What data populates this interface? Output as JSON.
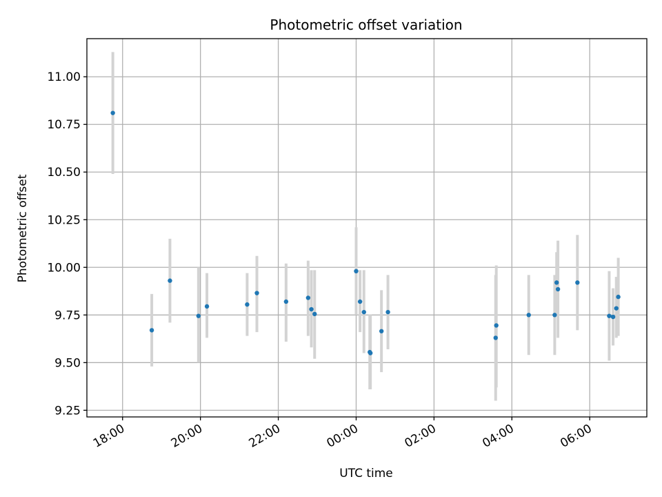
{
  "chart_data": {
    "type": "scatter",
    "title": "Photometric offset variation",
    "xlabel": "UTC time",
    "ylabel": "Photometric offset",
    "x_is_time_of_day": true,
    "xlim": [
      "17:05",
      "07:28"
    ],
    "ylim": [
      9.215,
      11.2
    ],
    "xticks": [
      "18:00",
      "20:00",
      "22:00",
      "00:00",
      "02:00",
      "04:00",
      "06:00"
    ],
    "yticks": [
      9.25,
      9.5,
      9.75,
      10.0,
      10.25,
      10.5,
      10.75,
      11.0
    ],
    "ytick_labels": [
      "9.25",
      "9.50",
      "9.75",
      "10.00",
      "10.25",
      "10.50",
      "10.75",
      "11.00"
    ],
    "grid": true,
    "marker_color": "#1f77b4",
    "errorbar_color": "#d3d3d3",
    "series": [
      {
        "points": [
          {
            "x": "17:45",
            "y": 10.81,
            "ylo": 10.49,
            "yhi": 11.13
          },
          {
            "x": "18:45",
            "y": 9.67,
            "ylo": 9.48,
            "yhi": 9.86
          },
          {
            "x": "19:13",
            "y": 9.93,
            "ylo": 9.71,
            "yhi": 10.15
          },
          {
            "x": "19:57",
            "y": 9.745,
            "ylo": 9.5,
            "yhi": 10.0
          },
          {
            "x": "20:10",
            "y": 9.795,
            "ylo": 9.63,
            "yhi": 9.97
          },
          {
            "x": "21:12",
            "y": 9.805,
            "ylo": 9.64,
            "yhi": 9.97
          },
          {
            "x": "21:27",
            "y": 9.865,
            "ylo": 9.66,
            "yhi": 10.06
          },
          {
            "x": "22:12",
            "y": 9.82,
            "ylo": 9.61,
            "yhi": 10.02
          },
          {
            "x": "22:46",
            "y": 9.84,
            "ylo": 9.64,
            "yhi": 10.035
          },
          {
            "x": "22:51",
            "y": 9.78,
            "ylo": 9.58,
            "yhi": 9.985
          },
          {
            "x": "22:56",
            "y": 9.755,
            "ylo": 9.52,
            "yhi": 9.985
          },
          {
            "x": "00:00",
            "y": 9.98,
            "ylo": 9.75,
            "yhi": 10.21
          },
          {
            "x": "00:06",
            "y": 9.82,
            "ylo": 9.66,
            "yhi": 9.985
          },
          {
            "x": "00:12",
            "y": 9.765,
            "ylo": 9.55,
            "yhi": 9.985
          },
          {
            "x": "00:21",
            "y": 9.555,
            "ylo": 9.36,
            "yhi": 9.75
          },
          {
            "x": "00:22",
            "y": 9.55,
            "ylo": 9.36,
            "yhi": 9.75
          },
          {
            "x": "00:39",
            "y": 9.665,
            "ylo": 9.45,
            "yhi": 9.88
          },
          {
            "x": "00:49",
            "y": 9.765,
            "ylo": 9.57,
            "yhi": 9.96
          },
          {
            "x": "03:35",
            "y": 9.63,
            "ylo": 9.3,
            "yhi": 9.96
          },
          {
            "x": "03:36",
            "y": 9.695,
            "ylo": 9.37,
            "yhi": 10.01
          },
          {
            "x": "04:26",
            "y": 9.75,
            "ylo": 9.54,
            "yhi": 9.96
          },
          {
            "x": "05:06",
            "y": 9.75,
            "ylo": 9.54,
            "yhi": 9.96
          },
          {
            "x": "05:09",
            "y": 9.92,
            "ylo": 9.76,
            "yhi": 10.08
          },
          {
            "x": "05:11",
            "y": 9.885,
            "ylo": 9.63,
            "yhi": 10.14
          },
          {
            "x": "05:41",
            "y": 9.92,
            "ylo": 9.67,
            "yhi": 10.17
          },
          {
            "x": "06:30",
            "y": 9.745,
            "ylo": 9.51,
            "yhi": 9.98
          },
          {
            "x": "06:36",
            "y": 9.74,
            "ylo": 9.59,
            "yhi": 9.89
          },
          {
            "x": "06:41",
            "y": 9.785,
            "ylo": 9.63,
            "yhi": 9.95
          },
          {
            "x": "06:44",
            "y": 9.845,
            "ylo": 9.64,
            "yhi": 10.05
          }
        ]
      }
    ]
  }
}
